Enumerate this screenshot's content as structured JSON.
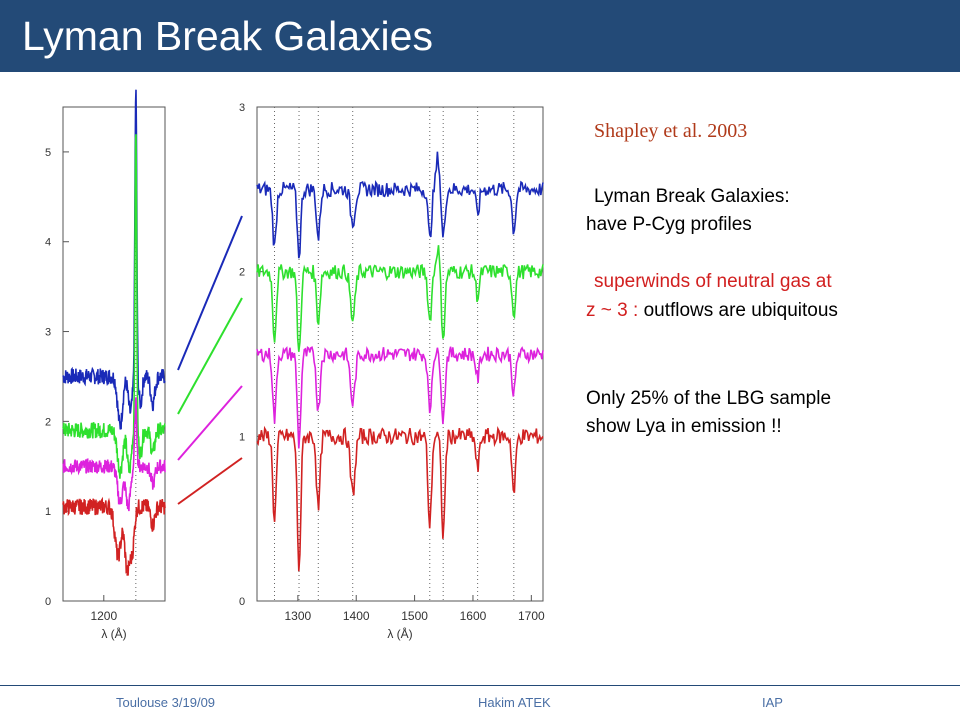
{
  "slide": {
    "title": "Lyman Break Galaxies"
  },
  "citation": "Shapley et al. 2003",
  "bullets": {
    "b1_line1": "Lyman Break Galaxies:",
    "b1_line2": "have P-Cyg profiles",
    "b2_line1_red": "superwinds of neutral gas at",
    "b2_line2_red": "z ~ 3 :",
    "b2_line2_rest": "outflows are ubiquitous",
    "b3_line1": "Only 25% of the LBG sample",
    "b3_line2": "show Lya in emission !!"
  },
  "footer": {
    "left": "Toulouse 3/19/09",
    "center": "Hakim ATEK",
    "right": "IAP"
  },
  "colors": {
    "title_bar": "#234a77",
    "citation": "#b03a1a",
    "bullet_red": "#d22020",
    "footer_text": "#4a6fa5"
  },
  "chart_data": [
    {
      "type": "line",
      "panel": "left",
      "xlabel": "λ (Å)",
      "xlim": [
        1180,
        1230
      ],
      "xticks": [
        1200
      ],
      "yticks": [
        "0",
        "1",
        "2",
        "3",
        "4",
        "5"
      ],
      "ylim": [
        0,
        5.5
      ],
      "vlines": [
        1215.7
      ],
      "series": [
        {
          "color": "#1a2ab8",
          "level": 2.5,
          "noise": 0.09,
          "features": [
            [
              1208,
              -0.55,
              1.2
            ],
            [
              1213,
              -0.4,
              1.0
            ],
            [
              1215.7,
              3.2,
              0.45
            ],
            [
              1218,
              -0.3,
              0.8
            ],
            [
              1224,
              -0.3,
              1.0
            ]
          ]
        },
        {
          "color": "#2ee02e",
          "level": 1.9,
          "noise": 0.09,
          "features": [
            [
              1208,
              -0.45,
              1.3
            ],
            [
              1212.5,
              -0.45,
              1.0
            ],
            [
              1215.7,
              3.4,
              0.4
            ],
            [
              1218,
              -0.25,
              0.8
            ],
            [
              1224,
              -0.25,
              1.0
            ]
          ]
        },
        {
          "color": "#dd22dd",
          "level": 1.5,
          "noise": 0.08,
          "features": [
            [
              1208,
              -0.4,
              1.3
            ],
            [
              1212,
              -0.45,
              1.1
            ],
            [
              1215.7,
              0.7,
              0.5
            ],
            [
              1224,
              -0.2,
              1.0
            ]
          ]
        },
        {
          "color": "#d12222",
          "level": 1.05,
          "noise": 0.09,
          "features": [
            [
              1207,
              -0.55,
              1.5
            ],
            [
              1211.5,
              -0.7,
              1.2
            ],
            [
              1214,
              -0.45,
              1.0
            ],
            [
              1224,
              -0.2,
              1.0
            ]
          ]
        }
      ]
    },
    {
      "type": "line",
      "panel": "right",
      "xlabel": "λ (Å)",
      "xlim": [
        1230,
        1720
      ],
      "xticks": [
        1300,
        1400,
        1500,
        1600,
        1700
      ],
      "yticks": [
        "0",
        "1",
        "2",
        "3"
      ],
      "ylim": [
        0,
        3
      ],
      "vlines": [
        1260,
        1302,
        1335,
        1394,
        1526,
        1549,
        1608,
        1670
      ],
      "series": [
        {
          "color": "#1a2ab8",
          "level": 2.5,
          "noise": 0.045,
          "features": [
            [
              1260,
              -0.35,
              3
            ],
            [
              1302,
              -0.4,
              3
            ],
            [
              1335,
              -0.3,
              3
            ],
            [
              1394,
              -0.2,
              4
            ],
            [
              1526,
              -0.3,
              3
            ],
            [
              1540,
              0.2,
              3
            ],
            [
              1549,
              -0.3,
              3
            ],
            [
              1608,
              -0.15,
              3
            ],
            [
              1670,
              -0.25,
              3
            ]
          ]
        },
        {
          "color": "#2ee02e",
          "level": 2.0,
          "noise": 0.045,
          "features": [
            [
              1260,
              -0.4,
              3
            ],
            [
              1302,
              -0.5,
              3
            ],
            [
              1335,
              -0.3,
              3
            ],
            [
              1394,
              -0.3,
              4
            ],
            [
              1526,
              -0.3,
              3
            ],
            [
              1540,
              0.15,
              3
            ],
            [
              1549,
              -0.4,
              3
            ],
            [
              1608,
              -0.15,
              3
            ],
            [
              1670,
              -0.25,
              3
            ]
          ]
        },
        {
          "color": "#dd22dd",
          "level": 1.5,
          "noise": 0.045,
          "features": [
            [
              1260,
              -0.4,
              3
            ],
            [
              1302,
              -0.55,
              3
            ],
            [
              1335,
              -0.35,
              3
            ],
            [
              1394,
              -0.3,
              4
            ],
            [
              1526,
              -0.35,
              3
            ],
            [
              1549,
              -0.4,
              3
            ],
            [
              1608,
              -0.15,
              3
            ],
            [
              1670,
              -0.25,
              3
            ]
          ]
        },
        {
          "color": "#d12222",
          "level": 1.0,
          "noise": 0.05,
          "features": [
            [
              1260,
              -0.5,
              3
            ],
            [
              1302,
              -0.8,
              3
            ],
            [
              1335,
              -0.45,
              3
            ],
            [
              1394,
              -0.35,
              4
            ],
            [
              1526,
              -0.55,
              3
            ],
            [
              1549,
              -0.6,
              3
            ],
            [
              1608,
              -0.2,
              3
            ],
            [
              1670,
              -0.35,
              3
            ]
          ]
        }
      ]
    }
  ]
}
